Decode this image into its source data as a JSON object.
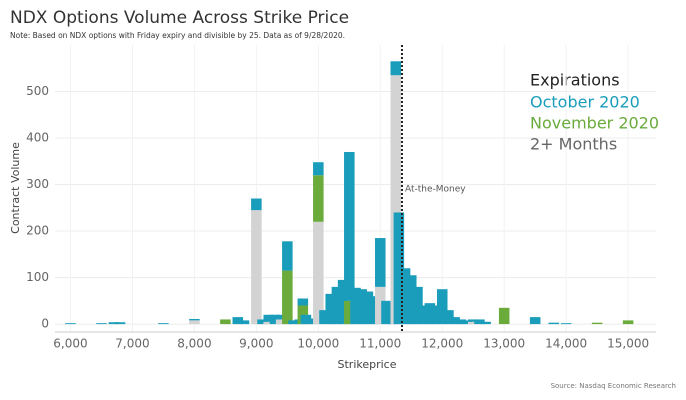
{
  "chart_data": {
    "type": "stacked_bar",
    "title": "NDX Options Volume Across Strike Price",
    "subtitle": "Note: Based on NDX options with Friday expiry and divisible by 25. Data as of 9/28/2020.",
    "x_label": "Strikeprice",
    "y_label": "Contract Volume",
    "source": "Source: Nasdaq Economic Research",
    "legend_title": "Expirations",
    "annotation": {
      "x": 11350,
      "label": "At-the-Money"
    },
    "x": [
      6000,
      6500,
      6700,
      6800,
      7500,
      8000,
      8500,
      8700,
      8800,
      9000,
      9100,
      9200,
      9300,
      9400,
      9500,
      9600,
      9700,
      9750,
      9800,
      9900,
      10000,
      10100,
      10200,
      10300,
      10400,
      10500,
      10600,
      10700,
      10800,
      10900,
      11000,
      11100,
      11200,
      11250,
      11300,
      11400,
      11500,
      11600,
      11700,
      11800,
      11900,
      12000,
      12100,
      12200,
      12300,
      12400,
      12500,
      12600,
      12700,
      13000,
      13500,
      13800,
      14000,
      14500,
      15000
    ],
    "series": [
      {
        "name": "2+ Months",
        "color": "#d3d3d3",
        "values": [
          0,
          0,
          0,
          0,
          0,
          8,
          0,
          0,
          0,
          245,
          0,
          5,
          0,
          10,
          0,
          0,
          0,
          0,
          0,
          0,
          220,
          0,
          0,
          0,
          0,
          0,
          0,
          0,
          0,
          0,
          80,
          0,
          0,
          535,
          0,
          0,
          0,
          0,
          0,
          0,
          0,
          0,
          0,
          0,
          0,
          0,
          5,
          0,
          0,
          0,
          0,
          0,
          0,
          0,
          0
        ]
      },
      {
        "name": "November 2020",
        "color": "#6aab3c",
        "values": [
          0,
          0,
          0,
          0,
          0,
          0,
          10,
          0,
          0,
          0,
          0,
          0,
          0,
          0,
          115,
          0,
          0,
          40,
          0,
          0,
          100,
          0,
          0,
          0,
          0,
          50,
          0,
          0,
          0,
          0,
          0,
          0,
          0,
          0,
          0,
          0,
          0,
          0,
          0,
          0,
          0,
          0,
          0,
          0,
          0,
          0,
          0,
          0,
          0,
          35,
          0,
          0,
          0,
          3,
          8
        ]
      },
      {
        "name": "October 2020",
        "color": "#1a9dbb",
        "values": [
          2,
          2,
          4,
          4,
          2,
          3,
          0,
          15,
          8,
          25,
          10,
          15,
          20,
          10,
          63,
          8,
          10,
          15,
          20,
          12,
          28,
          30,
          65,
          80,
          95,
          320,
          78,
          75,
          70,
          60,
          105,
          50,
          40,
          30,
          240,
          120,
          105,
          80,
          40,
          45,
          40,
          75,
          30,
          15,
          10,
          8,
          5,
          10,
          5,
          0,
          15,
          3,
          2,
          0,
          0
        ]
      }
    ],
    "xlim": [
      5750,
      15450
    ],
    "xticks": [
      {
        "value": 6000,
        "label": "6,000"
      },
      {
        "value": 7000,
        "label": "7,000"
      },
      {
        "value": 8000,
        "label": "8,000"
      },
      {
        "value": 9000,
        "label": "9,000"
      },
      {
        "value": 10000,
        "label": "10,000"
      },
      {
        "value": 11000,
        "label": "11,000"
      },
      {
        "value": 12000,
        "label": "12,000"
      },
      {
        "value": 13000,
        "label": "13,000"
      },
      {
        "value": 14000,
        "label": "14,000"
      },
      {
        "value": 15000,
        "label": "15,000"
      }
    ],
    "ylim": [
      -17,
      600
    ],
    "yticks": [
      0,
      100,
      200,
      300,
      400,
      500
    ],
    "grid": true
  }
}
